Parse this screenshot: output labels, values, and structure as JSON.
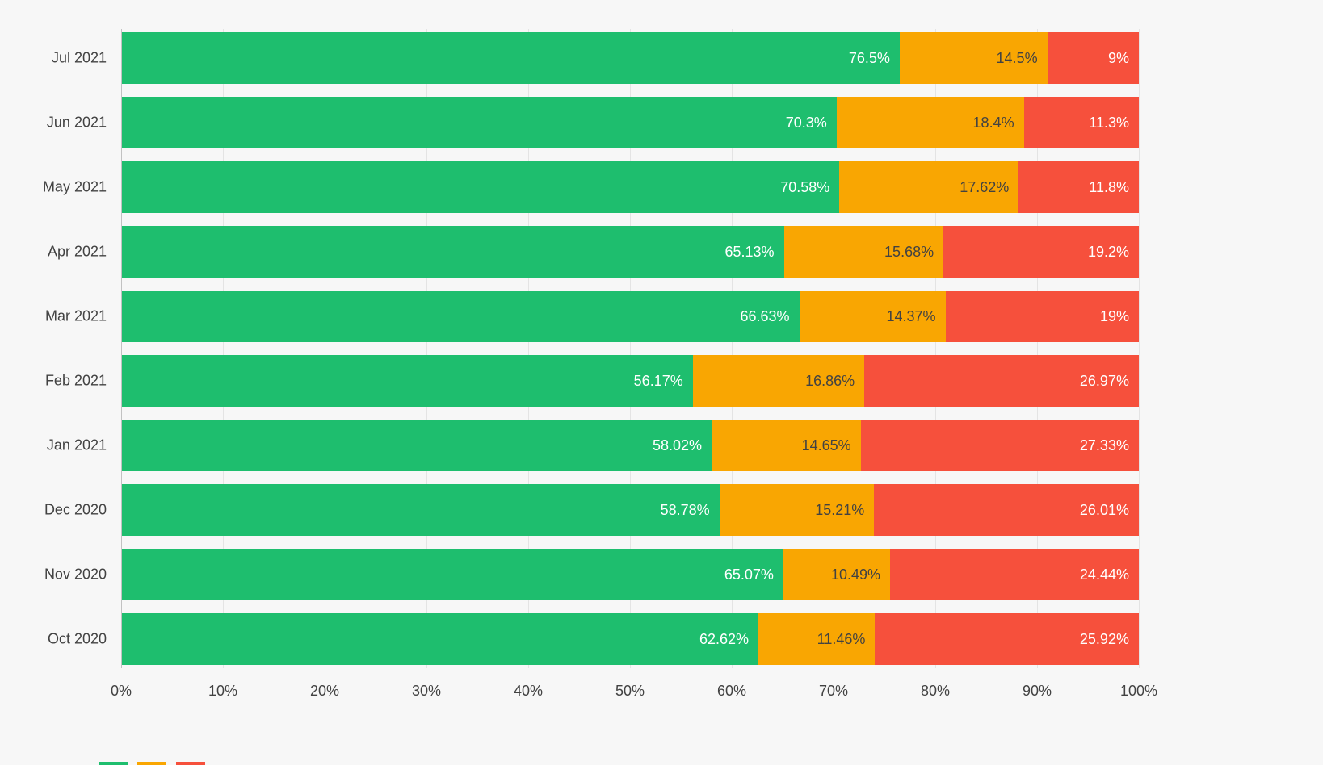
{
  "chart_data": {
    "type": "bar",
    "orientation": "horizontal",
    "stacked": true,
    "title": "",
    "xlabel": "",
    "ylabel": "",
    "xlim": [
      0,
      100
    ],
    "grid": true,
    "legend_position": "none",
    "background_color": "#f7f7f7",
    "axis_line_color": "#c2c2c2",
    "gridline_color": "#e4e4e4",
    "axis_text_color": "#424242",
    "categories": [
      "Jul 2021",
      "Jun 2021",
      "May 2021",
      "Apr 2021",
      "Mar 2021",
      "Feb 2021",
      "Jan 2021",
      "Dec 2020",
      "Nov 2020",
      "Oct 2020"
    ],
    "series": [
      {
        "name": "green",
        "color": "#1ebe6e",
        "label_color": "#ffffff",
        "values": [
          76.5,
          70.3,
          70.58,
          65.13,
          66.63,
          56.17,
          58.02,
          58.78,
          65.07,
          62.62
        ]
      },
      {
        "name": "orange",
        "color": "#f9a602",
        "label_color": "#424242",
        "values": [
          14.5,
          18.4,
          17.62,
          15.68,
          14.37,
          16.86,
          14.65,
          15.21,
          10.49,
          11.46
        ]
      },
      {
        "name": "red",
        "color": "#f6503c",
        "label_color": "#ffffff",
        "values": [
          9,
          11.3,
          11.8,
          19.2,
          19,
          26.97,
          27.33,
          26.01,
          24.44,
          25.92
        ]
      }
    ],
    "value_labels": [
      [
        "76.5%",
        "14.5%",
        "9%"
      ],
      [
        "70.3%",
        "18.4%",
        "11.3%"
      ],
      [
        "70.58%",
        "17.62%",
        "11.8%"
      ],
      [
        "65.13%",
        "15.68%",
        "19.2%"
      ],
      [
        "66.63%",
        "14.37%",
        "19%"
      ],
      [
        "56.17%",
        "16.86%",
        "26.97%"
      ],
      [
        "58.02%",
        "14.65%",
        "27.33%"
      ],
      [
        "58.78%",
        "15.21%",
        "26.01%"
      ],
      [
        "65.07%",
        "10.49%",
        "24.44%"
      ],
      [
        "62.62%",
        "11.46%",
        "25.92%"
      ]
    ],
    "x_ticks": [
      "0%",
      "10%",
      "20%",
      "30%",
      "40%",
      "50%",
      "60%",
      "70%",
      "80%",
      "90%",
      "100%"
    ]
  },
  "cutoff_strip": {
    "colors": [
      "#1ebe6e",
      "#f9a602",
      "#f6503c"
    ]
  }
}
